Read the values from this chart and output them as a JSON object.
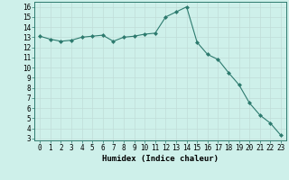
{
  "x": [
    0,
    1,
    2,
    3,
    4,
    5,
    6,
    7,
    8,
    9,
    10,
    11,
    12,
    13,
    14,
    15,
    16,
    17,
    18,
    19,
    20,
    21,
    22,
    23
  ],
  "y": [
    13.1,
    12.8,
    12.6,
    12.7,
    13.0,
    13.1,
    13.2,
    12.6,
    13.0,
    13.1,
    13.3,
    13.4,
    15.0,
    15.5,
    16.0,
    12.5,
    11.3,
    10.8,
    9.5,
    8.3,
    6.5,
    5.3,
    4.5,
    3.3
  ],
  "line_color": "#2d7a6e",
  "marker": "D",
  "marker_size": 2.0,
  "bg_color": "#cef0ea",
  "grid_major_color": "#c0ddd8",
  "grid_minor_color": "#d8eeeb",
  "xlabel": "Humidex (Indice chaleur)",
  "xlim": [
    -0.5,
    23.5
  ],
  "ylim": [
    2.8,
    16.5
  ],
  "yticks": [
    3,
    4,
    5,
    6,
    7,
    8,
    9,
    10,
    11,
    12,
    13,
    14,
    15,
    16
  ],
  "xticks": [
    0,
    1,
    2,
    3,
    4,
    5,
    6,
    7,
    8,
    9,
    10,
    11,
    12,
    13,
    14,
    15,
    16,
    17,
    18,
    19,
    20,
    21,
    22,
    23
  ],
  "xlabel_fontsize": 6.5,
  "tick_fontsize": 5.5
}
